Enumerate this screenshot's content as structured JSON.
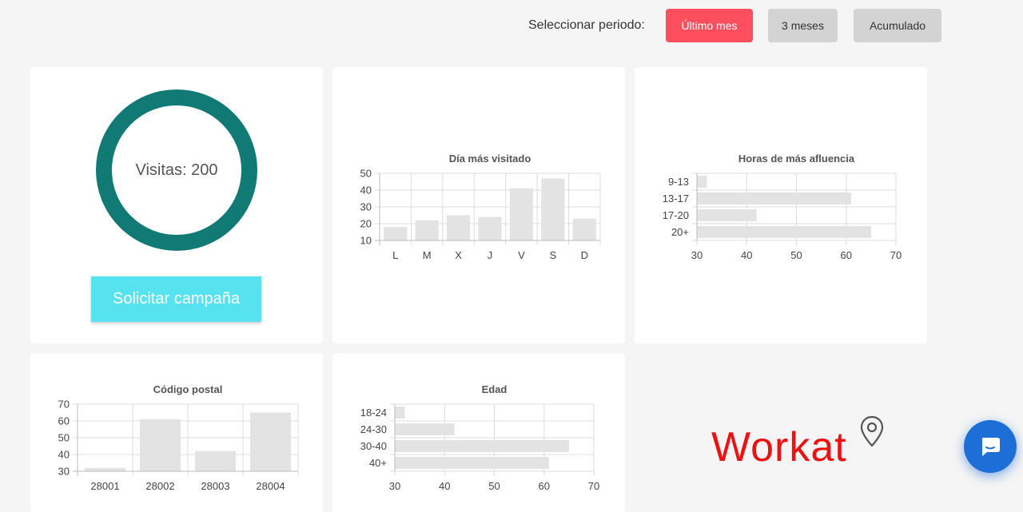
{
  "period": {
    "label": "Seleccionar periodo:",
    "options": [
      "Último mes",
      "3 meses",
      "Acumulado"
    ],
    "active_index": 0
  },
  "visits": {
    "text": "Visitas: 200"
  },
  "campaign_button": {
    "label": "Solicitar campaña"
  },
  "brand": {
    "name": "Workat"
  },
  "colors": {
    "accent_active": "#ff4f5e",
    "ring": "#127a74",
    "campaign_button": "#56e2ee",
    "brand": "#ee1111",
    "chat": "#1e6ed8",
    "bars": "#e3e3e3"
  },
  "icons": [
    "location-pin-icon",
    "chat-bubble-icon"
  ],
  "chart_data": [
    {
      "type": "bar",
      "title": "Día más visitado",
      "categories": [
        "L",
        "M",
        "X",
        "J",
        "V",
        "S",
        "D"
      ],
      "values": [
        18,
        22,
        25,
        24,
        41,
        47,
        23
      ],
      "ylim": [
        10,
        50
      ],
      "yticks": [
        10,
        20,
        30,
        40,
        50
      ],
      "grid": true
    },
    {
      "type": "bar",
      "orientation": "horizontal",
      "title": "Horas de más afluencia",
      "categories": [
        "9-13",
        "13-17",
        "17-20",
        "20+"
      ],
      "values": [
        32,
        61,
        42,
        65
      ],
      "xlim": [
        30,
        70
      ],
      "xticks": [
        30,
        40,
        50,
        60,
        70
      ],
      "grid": true
    },
    {
      "type": "bar",
      "title": "Código postal",
      "categories": [
        "28001",
        "28002",
        "28003",
        "28004"
      ],
      "values": [
        32,
        61,
        42,
        65
      ],
      "ylim": [
        30,
        70
      ],
      "yticks": [
        30,
        40,
        50,
        60,
        70
      ],
      "grid": true
    },
    {
      "type": "bar",
      "orientation": "horizontal",
      "title": "Edad",
      "categories": [
        "18-24",
        "24-30",
        "30-40",
        "40+"
      ],
      "values": [
        32,
        42,
        65,
        61
      ],
      "xlim": [
        30,
        70
      ],
      "xticks": [
        30,
        40,
        50,
        60,
        70
      ],
      "grid": true
    }
  ]
}
